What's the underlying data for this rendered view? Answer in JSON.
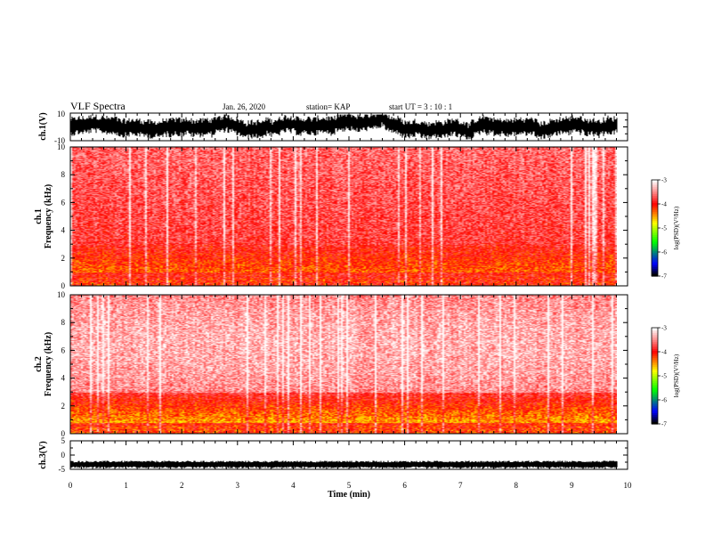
{
  "header": {
    "title": "VLF Spectra",
    "date": "Jan. 26, 2020",
    "station": "station= KAP",
    "start": "start  UT  =   3  : 10 : 1"
  },
  "chart_data": [
    {
      "type": "line",
      "panel": "ch1-waveform",
      "ylabel": "ch.1(V)",
      "ylim": [
        -10,
        10
      ],
      "y_ticks": [
        "10",
        "-10"
      ],
      "x_range_min": [
        0,
        10
      ],
      "data_end_min": 9.82
    },
    {
      "type": "heatmap",
      "panel": "ch1-spectrogram",
      "ylabel": "ch.1\nFrequency (kHz)",
      "ylim": [
        0,
        10
      ],
      "y_ticks": [
        "0",
        "2",
        "4",
        "6",
        "8",
        "10"
      ],
      "x_range_min": [
        0,
        10
      ],
      "data_end_min": 9.82,
      "colorbar": {
        "label": "log(PSD)(V²/Hz)",
        "range": [
          -7,
          -3
        ],
        "ticks": [
          "-3",
          "-4",
          "-5",
          "-6",
          "-7"
        ]
      }
    },
    {
      "type": "heatmap",
      "panel": "ch2-spectrogram",
      "ylabel": "ch.2\nFrequency (kHz)",
      "ylim": [
        0,
        10
      ],
      "y_ticks": [
        "0",
        "2",
        "4",
        "6",
        "8",
        "10"
      ],
      "x_range_min": [
        0,
        10
      ],
      "data_end_min": 9.82,
      "colorbar": {
        "label": "log(PSD)(V²/Hz)",
        "range": [
          -7,
          -3
        ],
        "ticks": [
          "-3",
          "-4",
          "-5",
          "-6",
          "-7"
        ]
      }
    },
    {
      "type": "line",
      "panel": "ch3-waveform",
      "ylabel": "ch.3(V)",
      "ylim": [
        -5,
        5
      ],
      "y_ticks": [
        "5",
        "0",
        "-5"
      ],
      "x_range_min": [
        0,
        10
      ],
      "data_end_min": 9.82,
      "xlabel": "Time (min)",
      "x_ticks": [
        "0",
        "1",
        "2",
        "3",
        "4",
        "5",
        "6",
        "7",
        "8",
        "9",
        "10"
      ]
    }
  ],
  "colors": {
    "frame": "#000000",
    "low": "#ffffff",
    "mid": "#ff0000",
    "high_yellow": "#ffff00",
    "high_green": "#00ff00",
    "deep": "#0000ff"
  }
}
